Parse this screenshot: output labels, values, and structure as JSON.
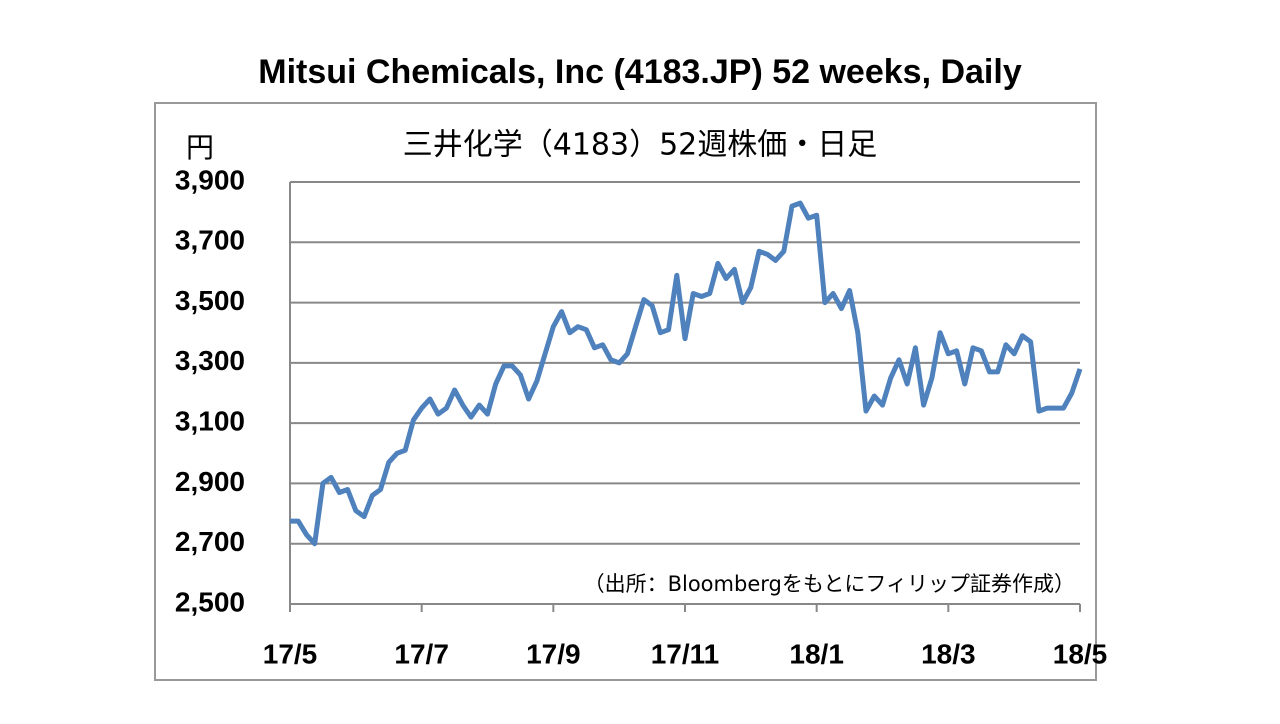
{
  "chart_data": {
    "type": "line",
    "title": "Mitsui Chemicals, Inc (4183.JP) 52 weeks, Daily",
    "subtitle": "三井化学（4183）52週株価・日足",
    "y_label": "円",
    "annotation": "（出所：Bloombergをもとにフィリップ証券作成）",
    "categories": [
      "17/5",
      null,
      null,
      null,
      null,
      null,
      null,
      null,
      null,
      null,
      null,
      null,
      null,
      null,
      null,
      null,
      "17/7",
      null,
      null,
      null,
      null,
      null,
      null,
      null,
      null,
      null,
      null,
      null,
      null,
      null,
      null,
      null,
      "17/9",
      null,
      null,
      null,
      null,
      null,
      null,
      null,
      null,
      null,
      null,
      null,
      null,
      null,
      null,
      null,
      "17/11",
      null,
      null,
      null,
      null,
      null,
      null,
      null,
      null,
      null,
      null,
      null,
      null,
      null,
      null,
      null,
      "18/1",
      null,
      null,
      null,
      null,
      null,
      null,
      null,
      null,
      null,
      null,
      null,
      null,
      null,
      null,
      null,
      "18/3",
      null,
      null,
      null,
      null,
      null,
      null,
      null,
      null,
      null,
      null,
      null,
      null,
      null,
      null,
      null,
      "18/5"
    ],
    "values": [
      2775,
      2775,
      2730,
      2700,
      2900,
      2920,
      2870,
      2880,
      2810,
      2790,
      2860,
      2880,
      2970,
      3000,
      3010,
      3110,
      3150,
      3180,
      3130,
      3150,
      3210,
      3160,
      3120,
      3160,
      3130,
      3230,
      3290,
      3290,
      3260,
      3180,
      3240,
      3330,
      3420,
      3470,
      3400,
      3420,
      3410,
      3350,
      3360,
      3310,
      3300,
      3330,
      3420,
      3510,
      3490,
      3400,
      3410,
      3590,
      3380,
      3530,
      3520,
      3530,
      3630,
      3580,
      3610,
      3500,
      3550,
      3670,
      3660,
      3640,
      3670,
      3820,
      3830,
      3780,
      3790,
      3500,
      3530,
      3480,
      3540,
      3400,
      3140,
      3190,
      3160,
      3250,
      3310,
      3230,
      3350,
      3160,
      3250,
      3400,
      3330,
      3340,
      3230,
      3350,
      3340,
      3270,
      3270,
      3360,
      3330,
      3390,
      3370,
      3140,
      3150,
      3150,
      3150,
      3200,
      3280
    ],
    "color": "#4f81bd",
    "ylim": [
      2500,
      3900
    ],
    "yticks": [
      {
        "value": 2500,
        "label": "2,500"
      },
      {
        "value": 2700,
        "label": "2,700"
      },
      {
        "value": 2900,
        "label": "2,900"
      },
      {
        "value": 3100,
        "label": "3,100"
      },
      {
        "value": 3300,
        "label": "3,300"
      },
      {
        "value": 3500,
        "label": "3,500"
      },
      {
        "value": 3700,
        "label": "3,700"
      },
      {
        "value": 3900,
        "label": "3,900"
      }
    ],
    "grid": true
  }
}
